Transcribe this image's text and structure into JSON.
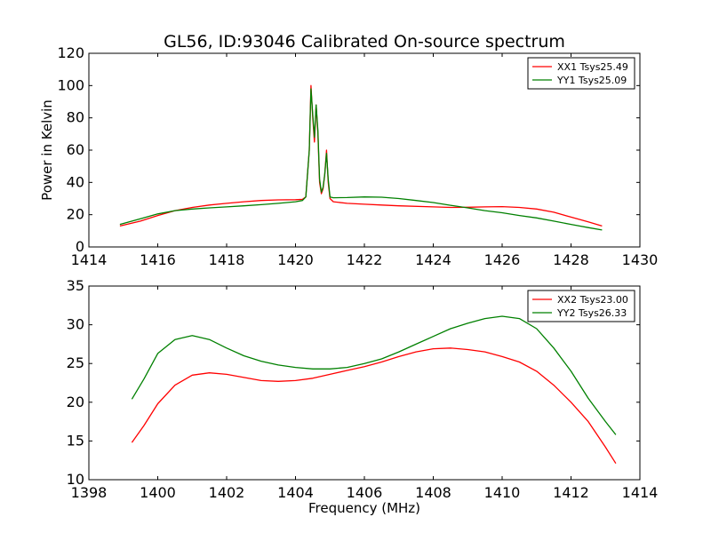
{
  "title": "GL56, ID:93046 Calibrated On-source spectrum",
  "chart_data": [
    {
      "type": "line",
      "title": "GL56, ID:93046 Calibrated On-source spectrum",
      "xlabel": "",
      "ylabel": "Power in Kelvin",
      "xlim": [
        1414,
        1430
      ],
      "ylim": [
        0,
        120
      ],
      "xticks": [
        1414,
        1416,
        1418,
        1420,
        1422,
        1424,
        1426,
        1428,
        1430
      ],
      "yticks": [
        0,
        20,
        40,
        60,
        80,
        100,
        120
      ],
      "grid": false,
      "legend_position": "top-right",
      "series": [
        {
          "name": "XX1 Tsys25.49",
          "color": "#ff0000",
          "x": [
            1414.9,
            1415.5,
            1416.0,
            1416.5,
            1417.0,
            1417.5,
            1418.0,
            1418.5,
            1419.0,
            1419.5,
            1420.0,
            1420.2,
            1420.3,
            1420.4,
            1420.45,
            1420.5,
            1420.55,
            1420.6,
            1420.65,
            1420.7,
            1420.75,
            1420.8,
            1420.85,
            1420.9,
            1420.95,
            1421.0,
            1421.1,
            1421.5,
            1422.0,
            1422.5,
            1423.0,
            1424.0,
            1424.5,
            1425.0,
            1425.5,
            1426.0,
            1426.5,
            1427.0,
            1427.5,
            1428.0,
            1428.5,
            1428.9
          ],
          "y": [
            13,
            16,
            19.5,
            22.5,
            24.5,
            26,
            27,
            28,
            28.8,
            29.2,
            29.3,
            29.5,
            31,
            60,
            100,
            80,
            65,
            88,
            70,
            40,
            33,
            36,
            45,
            60,
            40,
            30,
            28,
            27,
            26.5,
            26,
            25.5,
            24.8,
            24.5,
            24.6,
            24.8,
            25,
            24.5,
            23.5,
            21.5,
            18.5,
            15.5,
            13
          ]
        },
        {
          "name": "YY1 Tsys25.09",
          "color": "#008000",
          "x": [
            1414.9,
            1415.5,
            1416.0,
            1416.5,
            1417.0,
            1417.5,
            1418.0,
            1418.5,
            1419.0,
            1419.5,
            1420.0,
            1420.2,
            1420.3,
            1420.4,
            1420.45,
            1420.5,
            1420.55,
            1420.6,
            1420.65,
            1420.7,
            1420.75,
            1420.8,
            1420.85,
            1420.9,
            1420.95,
            1421.0,
            1421.1,
            1421.5,
            1422.0,
            1422.5,
            1423.0,
            1423.5,
            1424.0,
            1424.5,
            1425.0,
            1425.5,
            1426.0,
            1426.5,
            1427.0,
            1427.5,
            1428.0,
            1428.5,
            1428.9
          ],
          "y": [
            14,
            17.5,
            20.5,
            22.5,
            23.5,
            24.2,
            24.8,
            25.5,
            26.2,
            27,
            28,
            28.8,
            31,
            60,
            98,
            82,
            68,
            88,
            72,
            42,
            34,
            37,
            45,
            58,
            42,
            31,
            30.5,
            30.6,
            31,
            30.8,
            30,
            28.8,
            27.5,
            25.8,
            24.2,
            22.5,
            21.2,
            19.5,
            18,
            16,
            14,
            12,
            10.5
          ]
        }
      ]
    },
    {
      "type": "line",
      "title": "",
      "xlabel": "Frequency (MHz)",
      "ylabel": "",
      "xlim": [
        1398,
        1414
      ],
      "ylim": [
        10,
        35
      ],
      "xticks": [
        1398,
        1400,
        1402,
        1404,
        1406,
        1408,
        1410,
        1412,
        1414
      ],
      "yticks": [
        10,
        15,
        20,
        25,
        30,
        35
      ],
      "grid": false,
      "legend_position": "top-right",
      "series": [
        {
          "name": "XX2 Tsys23.00",
          "color": "#ff0000",
          "x": [
            1399.25,
            1399.6,
            1400.0,
            1400.5,
            1401.0,
            1401.5,
            1402.0,
            1402.5,
            1403.0,
            1403.5,
            1404.0,
            1404.5,
            1405.0,
            1405.5,
            1406.0,
            1406.5,
            1407.0,
            1407.5,
            1408.0,
            1408.5,
            1409.0,
            1409.5,
            1410.0,
            1410.5,
            1411.0,
            1411.5,
            1412.0,
            1412.5,
            1413.0,
            1413.3
          ],
          "y": [
            14.8,
            17,
            19.8,
            22.2,
            23.5,
            23.8,
            23.6,
            23.2,
            22.8,
            22.7,
            22.8,
            23.1,
            23.6,
            24.1,
            24.6,
            25.2,
            25.9,
            26.5,
            26.9,
            27,
            26.8,
            26.5,
            25.9,
            25.2,
            24,
            22.2,
            20,
            17.5,
            14.2,
            12.1
          ]
        },
        {
          "name": "YY2 Tsys26.33",
          "color": "#008000",
          "x": [
            1399.25,
            1399.6,
            1400.0,
            1400.5,
            1401.0,
            1401.5,
            1402.0,
            1402.5,
            1403.0,
            1403.5,
            1404.0,
            1404.5,
            1405.0,
            1405.5,
            1406.0,
            1406.5,
            1407.0,
            1407.5,
            1408.0,
            1408.5,
            1409.0,
            1409.5,
            1410.0,
            1410.5,
            1411.0,
            1411.5,
            1412.0,
            1412.5,
            1413.0,
            1413.3
          ],
          "y": [
            20.4,
            23,
            26.3,
            28.1,
            28.6,
            28.1,
            27,
            26,
            25.3,
            24.8,
            24.5,
            24.3,
            24.3,
            24.5,
            25,
            25.6,
            26.5,
            27.5,
            28.5,
            29.5,
            30.2,
            30.8,
            31.1,
            30.8,
            29.5,
            27,
            24,
            20.5,
            17.5,
            15.8
          ]
        }
      ]
    }
  ]
}
